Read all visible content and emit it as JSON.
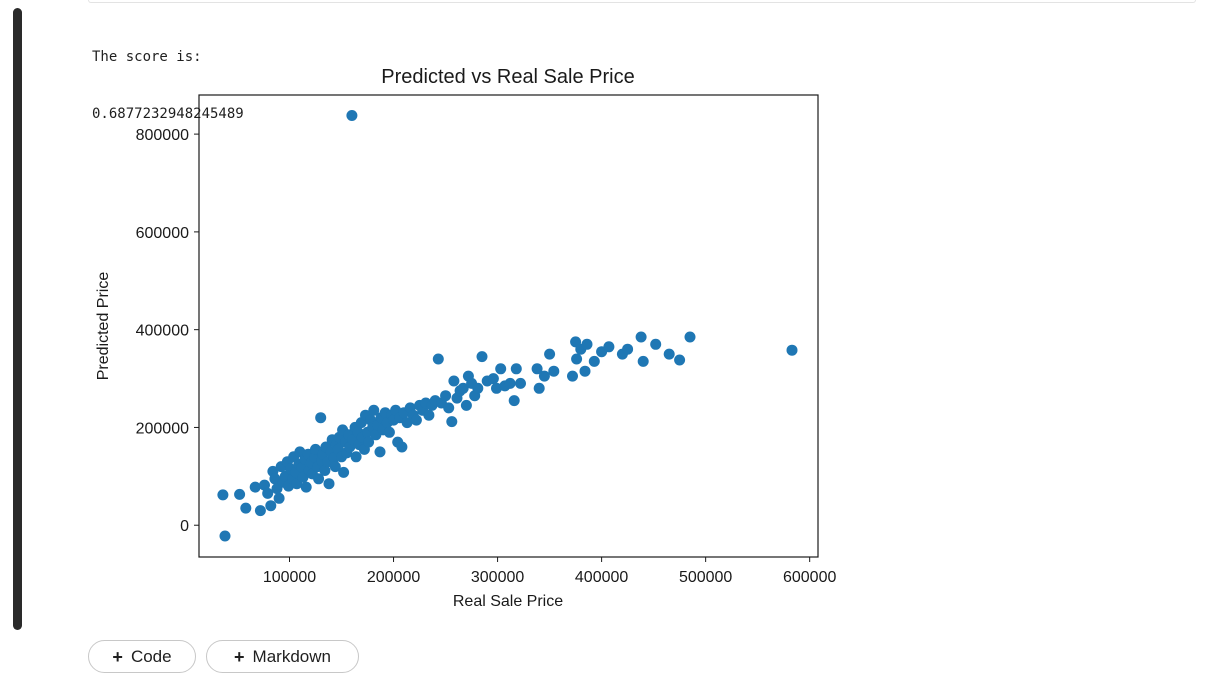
{
  "output": {
    "line1": "The score is:",
    "line2": "0.6877232948245489"
  },
  "toolbar": {
    "add_code_label": "Code",
    "add_markdown_label": "Markdown",
    "plus_icon": "+"
  },
  "colors": {
    "point": "#1f77b4",
    "cell_bar": "#2a2a2a"
  },
  "chart_data": {
    "type": "scatter",
    "title": "Predicted vs Real Sale Price",
    "xlabel": "Real Sale Price",
    "ylabel": "Predicted Price",
    "xlim": [
      13000,
      608000
    ],
    "ylim": [
      -65000,
      880000
    ],
    "xticks": [
      100000,
      200000,
      300000,
      400000,
      500000,
      600000
    ],
    "yticks": [
      0,
      200000,
      400000,
      600000,
      800000
    ],
    "grid": false,
    "points": [
      [
        36000,
        62000
      ],
      [
        38000,
        -22000
      ],
      [
        52000,
        63000
      ],
      [
        58000,
        35000
      ],
      [
        67000,
        78000
      ],
      [
        72000,
        30000
      ],
      [
        76000,
        82000
      ],
      [
        79000,
        65000
      ],
      [
        82000,
        40000
      ],
      [
        84000,
        110000
      ],
      [
        86000,
        95000
      ],
      [
        88000,
        75000
      ],
      [
        90000,
        55000
      ],
      [
        92000,
        120000
      ],
      [
        94000,
        88000
      ],
      [
        96000,
        100000
      ],
      [
        98000,
        130000
      ],
      [
        99000,
        80000
      ],
      [
        101000,
        115000
      ],
      [
        103000,
        95000
      ],
      [
        104000,
        140000
      ],
      [
        106000,
        108000
      ],
      [
        107000,
        85000
      ],
      [
        109000,
        125000
      ],
      [
        110000,
        150000
      ],
      [
        112000,
        118000
      ],
      [
        113000,
        98000
      ],
      [
        115000,
        135000
      ],
      [
        116000,
        78000
      ],
      [
        118000,
        145000
      ],
      [
        119000,
        112000
      ],
      [
        121000,
        128000
      ],
      [
        122000,
        105000
      ],
      [
        124000,
        140000
      ],
      [
        125000,
        155000
      ],
      [
        127000,
        120000
      ],
      [
        128000,
        95000
      ],
      [
        130000,
        220000
      ],
      [
        131000,
        132000
      ],
      [
        132000,
        145000
      ],
      [
        134000,
        112000
      ],
      [
        135000,
        160000
      ],
      [
        137000,
        130000
      ],
      [
        138000,
        85000
      ],
      [
        140000,
        150000
      ],
      [
        141000,
        175000
      ],
      [
        143000,
        138000
      ],
      [
        144000,
        120000
      ],
      [
        145000,
        165000
      ],
      [
        147000,
        155000
      ],
      [
        148000,
        180000
      ],
      [
        150000,
        140000
      ],
      [
        151000,
        195000
      ],
      [
        152000,
        108000
      ],
      [
        154000,
        170000
      ],
      [
        155000,
        148000
      ],
      [
        157000,
        185000
      ],
      [
        158000,
        160000
      ],
      [
        160000,
        838000
      ],
      [
        161000,
        175000
      ],
      [
        163000,
        200000
      ],
      [
        164000,
        140000
      ],
      [
        166000,
        190000
      ],
      [
        167000,
        165000
      ],
      [
        169000,
        210000
      ],
      [
        170000,
        180000
      ],
      [
        172000,
        155000
      ],
      [
        173000,
        225000
      ],
      [
        175000,
        190000
      ],
      [
        176000,
        170000
      ],
      [
        178000,
        215000
      ],
      [
        180000,
        200000
      ],
      [
        181000,
        235000
      ],
      [
        183000,
        185000
      ],
      [
        185000,
        205000
      ],
      [
        187000,
        150000
      ],
      [
        188000,
        220000
      ],
      [
        190000,
        195000
      ],
      [
        192000,
        230000
      ],
      [
        194000,
        210000
      ],
      [
        196000,
        190000
      ],
      [
        198000,
        225000
      ],
      [
        200000,
        215000
      ],
      [
        202000,
        235000
      ],
      [
        204000,
        170000
      ],
      [
        206000,
        220000
      ],
      [
        208000,
        160000
      ],
      [
        210000,
        230000
      ],
      [
        213000,
        210000
      ],
      [
        216000,
        240000
      ],
      [
        219000,
        225000
      ],
      [
        222000,
        215000
      ],
      [
        225000,
        245000
      ],
      [
        228000,
        235000
      ],
      [
        231000,
        250000
      ],
      [
        234000,
        225000
      ],
      [
        237000,
        245000
      ],
      [
        240000,
        255000
      ],
      [
        243000,
        340000
      ],
      [
        246000,
        250000
      ],
      [
        250000,
        265000
      ],
      [
        253000,
        240000
      ],
      [
        256000,
        212000
      ],
      [
        258000,
        295000
      ],
      [
        261000,
        260000
      ],
      [
        264000,
        275000
      ],
      [
        267000,
        280000
      ],
      [
        270000,
        245000
      ],
      [
        272000,
        305000
      ],
      [
        275000,
        290000
      ],
      [
        278000,
        265000
      ],
      [
        281000,
        280000
      ],
      [
        285000,
        345000
      ],
      [
        290000,
        295000
      ],
      [
        296000,
        300000
      ],
      [
        299000,
        280000
      ],
      [
        303000,
        320000
      ],
      [
        307000,
        285000
      ],
      [
        312000,
        290000
      ],
      [
        316000,
        255000
      ],
      [
        318000,
        320000
      ],
      [
        322000,
        290000
      ],
      [
        338000,
        320000
      ],
      [
        340000,
        280000
      ],
      [
        345000,
        305000
      ],
      [
        350000,
        350000
      ],
      [
        354000,
        315000
      ],
      [
        372000,
        305000
      ],
      [
        375000,
        375000
      ],
      [
        376000,
        340000
      ],
      [
        380000,
        360000
      ],
      [
        384000,
        315000
      ],
      [
        386000,
        370000
      ],
      [
        393000,
        335000
      ],
      [
        400000,
        355000
      ],
      [
        407000,
        365000
      ],
      [
        420000,
        350000
      ],
      [
        425000,
        360000
      ],
      [
        438000,
        385000
      ],
      [
        440000,
        335000
      ],
      [
        452000,
        370000
      ],
      [
        465000,
        350000
      ],
      [
        475000,
        338000
      ],
      [
        485000,
        385000
      ],
      [
        583000,
        358000
      ]
    ]
  }
}
